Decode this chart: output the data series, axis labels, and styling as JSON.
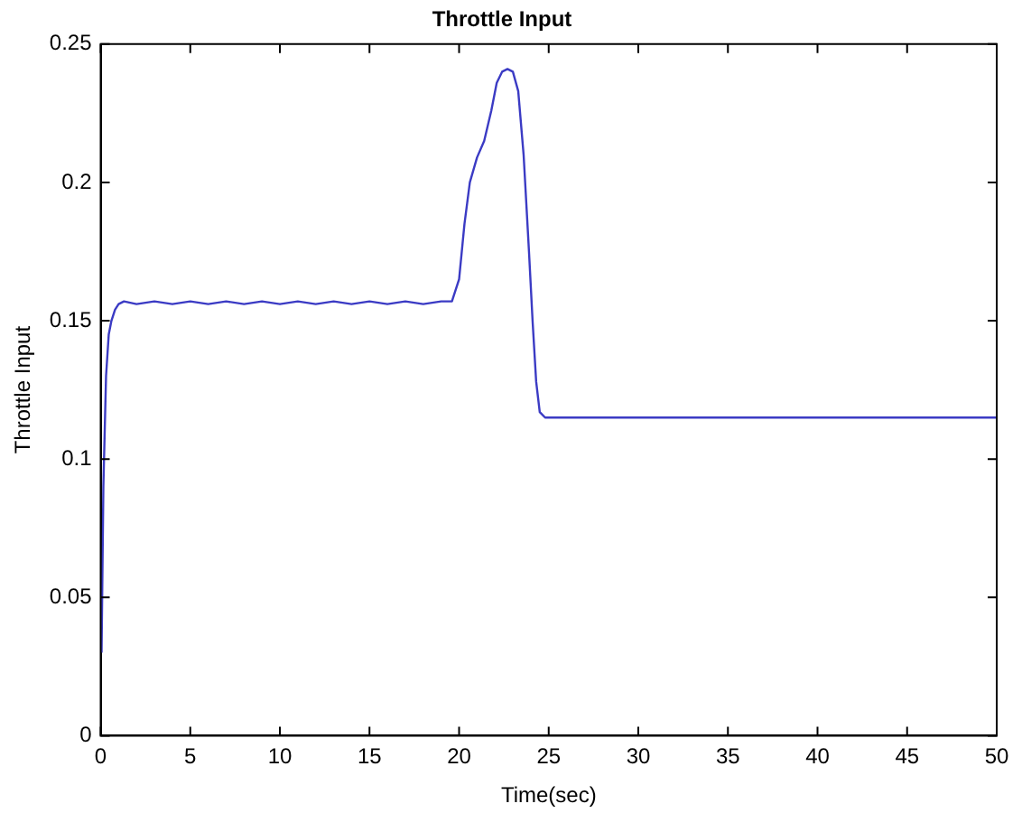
{
  "chart_data": {
    "type": "line",
    "title": "Throttle Input",
    "xlabel": "Time(sec)",
    "ylabel": "Throttle Input",
    "x": [
      0.05,
      0.15,
      0.3,
      0.45,
      0.6,
      0.8,
      1.0,
      1.3,
      2,
      3,
      4,
      5,
      6,
      7,
      8,
      9,
      10,
      11,
      12,
      13,
      14,
      15,
      16,
      17,
      18,
      19,
      19.6,
      20,
      20.3,
      20.6,
      21,
      21.4,
      21.8,
      22.1,
      22.4,
      22.7,
      23,
      23.3,
      23.6,
      23.9,
      24.1,
      24.3,
      24.5,
      24.8,
      25.5,
      30,
      35,
      40,
      45,
      50
    ],
    "series": [
      {
        "color": "#3b3bc4",
        "values": [
          0.03,
          0.09,
          0.13,
          0.145,
          0.15,
          0.154,
          0.156,
          0.157,
          0.156,
          0.157,
          0.156,
          0.157,
          0.156,
          0.157,
          0.156,
          0.157,
          0.156,
          0.157,
          0.156,
          0.157,
          0.156,
          0.157,
          0.156,
          0.157,
          0.156,
          0.157,
          0.157,
          0.165,
          0.185,
          0.2,
          0.209,
          0.215,
          0.226,
          0.236,
          0.24,
          0.241,
          0.24,
          0.233,
          0.21,
          0.175,
          0.15,
          0.128,
          0.117,
          0.115,
          0.115,
          0.115,
          0.115,
          0.115,
          0.115,
          0.115
        ]
      }
    ],
    "xlim": [
      0,
      50
    ],
    "xticks": [
      0,
      5,
      10,
      15,
      20,
      25,
      30,
      35,
      40,
      45,
      50
    ],
    "ylim": [
      0,
      0.25
    ],
    "yticks": [
      0,
      0.05,
      0.1,
      0.15,
      0.2,
      0.25
    ],
    "grid": false,
    "legend": false,
    "marker": "none",
    "line_style": "solid"
  }
}
